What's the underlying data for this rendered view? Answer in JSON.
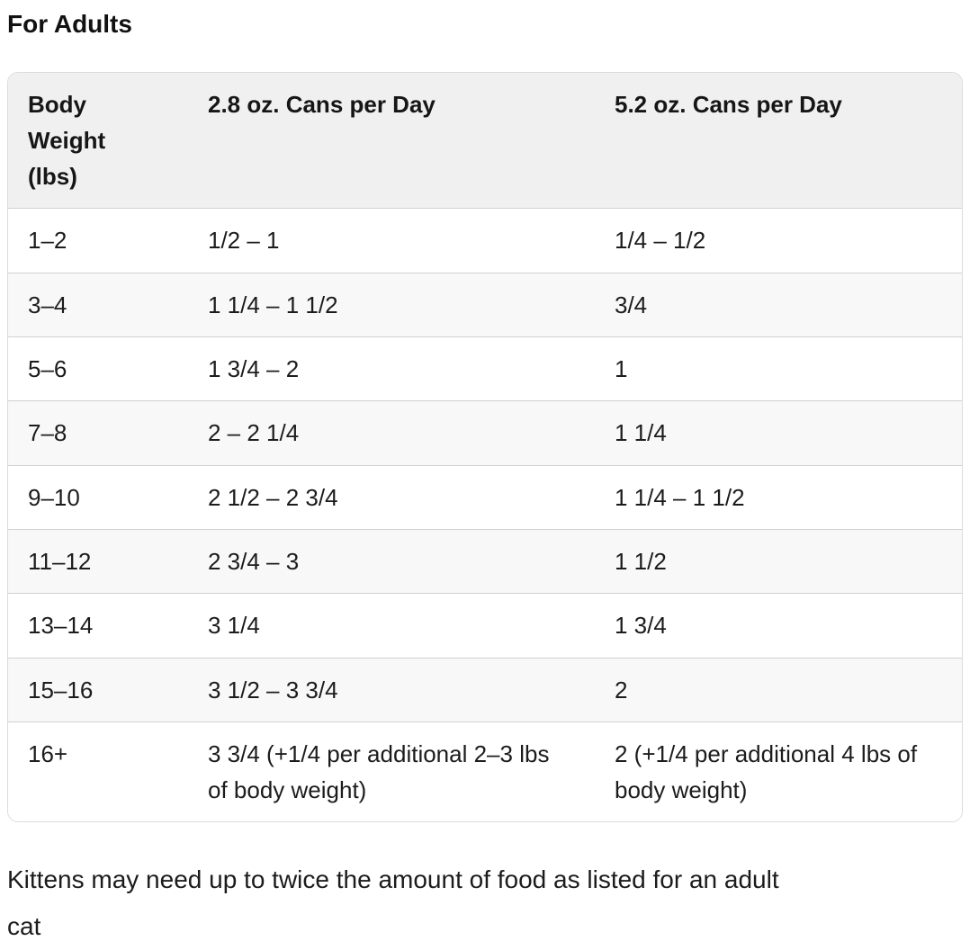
{
  "page": {
    "title": "For Adults",
    "footnote": "Kittens may need up to twice the amount of food as listed for an adult cat"
  },
  "table": {
    "headers": [
      "Body Weight (lbs)",
      "2.8 oz. Cans per Day",
      "5.2 oz. Cans per Day"
    ],
    "rows": [
      [
        "1–2",
        "1/2 – 1",
        "1/4 – 1/2"
      ],
      [
        "3–4",
        "1 1/4 – 1 1/2",
        "3/4"
      ],
      [
        "5–6",
        "1 3/4 – 2",
        "1"
      ],
      [
        "7–8",
        "2 – 2 1/4",
        "1 1/4"
      ],
      [
        "9–10",
        "2 1/2 – 2 3/4",
        "1 1/4 – 1 1/2"
      ],
      [
        "11–12",
        "2 3/4 – 3",
        "1 1/2"
      ],
      [
        "13–14",
        "3 1/4",
        "1 3/4"
      ],
      [
        "15–16",
        "3 1/2 – 3 3/4",
        "2"
      ],
      [
        "16+",
        "3 3/4 (+1/4 per additional 2–3 lbs of body weight)",
        "2 (+1/4 per additional 4 lbs of body weight)"
      ]
    ]
  },
  "colors": {
    "header_bg": "#f0f0f0",
    "stripe_bg": "#f8f8f8",
    "row_divider": "#d1d1d1",
    "outer_border": "#dcdcdc",
    "text": "#1c1c1c"
  }
}
